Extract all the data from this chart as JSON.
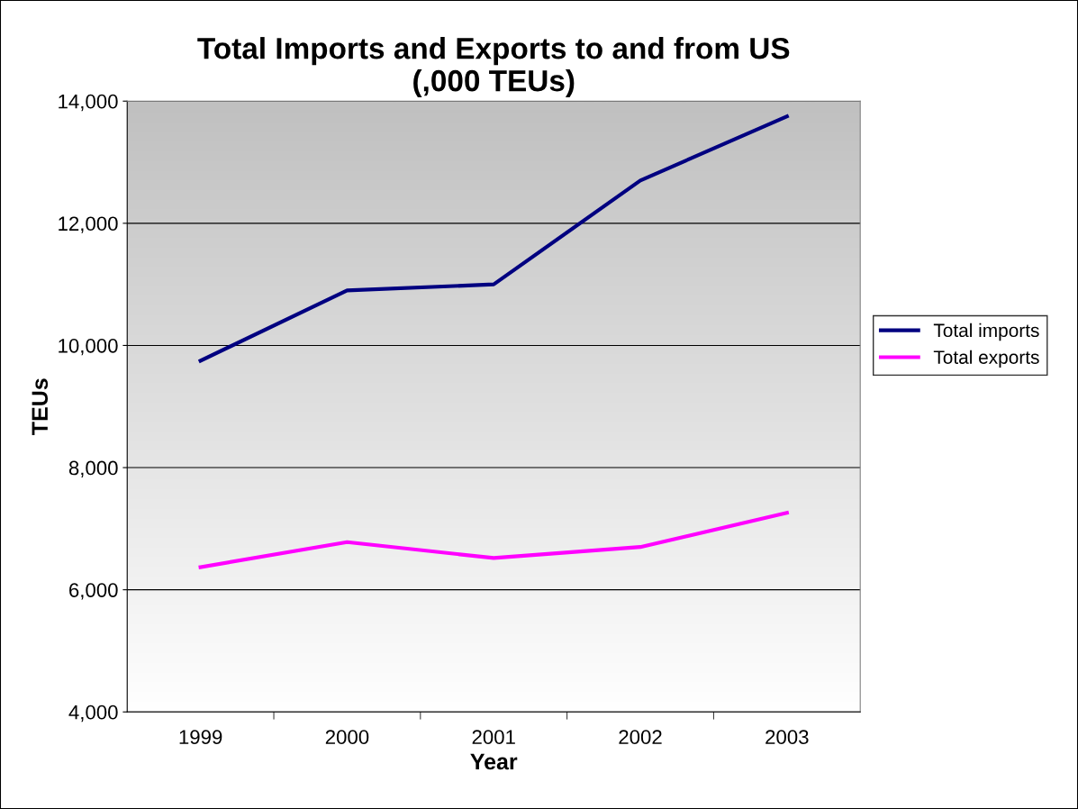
{
  "chart_data": {
    "type": "line",
    "title": "Total Imports and Exports to and from US\n(,000 TEUs)",
    "xlabel": "Year",
    "ylabel": "TEUs",
    "categories": [
      "1999",
      "2000",
      "2001",
      "2002",
      "2003"
    ],
    "series": [
      {
        "name": "Total imports",
        "color": "#000080",
        "values": [
          9750,
          10900,
          11000,
          12700,
          13750
        ]
      },
      {
        "name": "Total exports",
        "color": "#ff00ff",
        "values": [
          6370,
          6780,
          6520,
          6700,
          7260
        ]
      }
    ],
    "ylim": [
      4000,
      14000
    ],
    "yticks": [
      {
        "value": 4000,
        "label": "4,000"
      },
      {
        "value": 6000,
        "label": "6,000"
      },
      {
        "value": 8000,
        "label": "8,000"
      },
      {
        "value": 10000,
        "label": "10,000"
      },
      {
        "value": 12000,
        "label": "12,000"
      },
      {
        "value": 14000,
        "label": "14,000"
      }
    ],
    "grid": "y",
    "legend": "right",
    "marker": "none",
    "line_style": "solid"
  }
}
